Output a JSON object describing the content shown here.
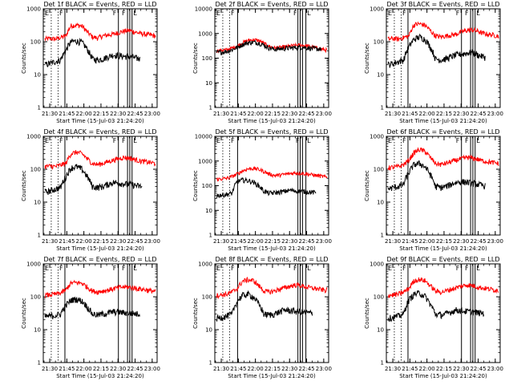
{
  "chart_data": [
    {
      "type": "line",
      "title": "Det 1f BLACK = Events, RED = LLD",
      "xlabel": "Start Time (15-Jul-03 21:24:20)",
      "ylabel": "Counts/sec",
      "yscale": "log",
      "ylim": [
        1,
        1000
      ],
      "xlim_min": [
        0,
        100
      ],
      "xtick_labels": [
        "21:30",
        "21:45",
        "22:00",
        "22:15",
        "22:30",
        "22:45",
        "23:00"
      ],
      "ytick_labels": [
        "1",
        "10",
        "100",
        "1000"
      ],
      "red_profile": [
        120,
        125,
        120,
        135,
        150,
        310,
        320,
        300,
        200,
        140,
        130,
        150,
        160,
        170,
        190,
        210,
        220,
        200,
        180,
        170,
        160,
        150
      ],
      "black_profile": [
        20,
        22,
        25,
        28,
        55,
        100,
        105,
        95,
        60,
        30,
        28,
        30,
        35,
        40,
        38,
        36,
        35,
        33,
        30,
        28,
        26,
        24
      ],
      "black_end_frac": 0.86,
      "markers": [
        {
          "label": "F",
          "min": 13
        },
        {
          "label": "F",
          "min": 60
        },
        {
          "label": "F",
          "min": 68
        },
        {
          "label": "L",
          "min": 78
        }
      ],
      "dashed_lines_min": [
        7,
        13
      ],
      "solid_lines_min": [
        19,
        66,
        74,
        76,
        78
      ],
      "colors": {
        "red": "#ff0000",
        "black": "#000000"
      }
    },
    {
      "type": "line",
      "title": "Det 2f BLACK = Events, RED = LLD",
      "xlabel": "Start Time (15-Jul-03 21:24:20)",
      "ylabel": "Counts/sec",
      "yscale": "log",
      "ylim": [
        1,
        10000
      ],
      "xlim_min": [
        0,
        100
      ],
      "xtick_labels": [
        "21:30",
        "21:45",
        "22:00",
        "22:15",
        "22:30",
        "22:45",
        "23:00"
      ],
      "ytick_labels": [
        "1",
        "10",
        "100",
        "1000",
        "10000"
      ],
      "red_profile": [
        200,
        210,
        220,
        260,
        320,
        420,
        520,
        560,
        520,
        400,
        300,
        260,
        270,
        290,
        310,
        330,
        340,
        320,
        290,
        260,
        230,
        210
      ],
      "black_profile": [
        170,
        175,
        190,
        220,
        280,
        360,
        420,
        440,
        420,
        340,
        260,
        230,
        240,
        250,
        260,
        270,
        280,
        270,
        250,
        240,
        230,
        220
      ],
      "black_end_frac": 0.95,
      "markers": [
        {
          "label": "F",
          "min": 13
        },
        {
          "label": "F",
          "min": 68
        },
        {
          "label": "L",
          "min": 80
        }
      ],
      "dashed_lines_min": [
        7,
        13
      ],
      "solid_lines_min": [
        20,
        73,
        75,
        77,
        80
      ],
      "colors": {
        "red": "#ff0000",
        "black": "#000000"
      }
    },
    {
      "type": "line",
      "title": "Det 3f BLACK = Events, RED = LLD",
      "xlabel": "Start Time (15-Jul-03 21:24:20)",
      "ylabel": "Counts/sec",
      "yscale": "log",
      "ylim": [
        1,
        1000
      ],
      "xlim_min": [
        0,
        100
      ],
      "xtick_labels": [
        "21:30",
        "21:45",
        "22:00",
        "22:15",
        "22:30",
        "22:45",
        "23:00"
      ],
      "ytick_labels": [
        "1",
        "10",
        "100",
        "1000"
      ],
      "red_profile": [
        120,
        125,
        120,
        135,
        150,
        330,
        350,
        320,
        220,
        150,
        140,
        150,
        160,
        170,
        200,
        220,
        230,
        210,
        180,
        170,
        160,
        150
      ],
      "black_profile": [
        20,
        22,
        25,
        28,
        70,
        120,
        140,
        120,
        70,
        30,
        28,
        30,
        35,
        40,
        42,
        45,
        48,
        40,
        35,
        32,
        30,
        28
      ],
      "black_end_frac": 0.88,
      "markers": [
        {
          "label": "F",
          "min": 13
        },
        {
          "label": "F",
          "min": 60
        },
        {
          "label": "F",
          "min": 68
        },
        {
          "label": "L",
          "min": 78
        }
      ],
      "dashed_lines_min": [
        7,
        13
      ],
      "solid_lines_min": [
        19,
        66,
        74,
        76,
        78
      ],
      "colors": {
        "red": "#ff0000",
        "black": "#000000"
      }
    },
    {
      "type": "line",
      "title": "Det 4f BLACK = Events, RED = LLD",
      "xlabel": "Start Time (15-Jul-03 21:24:20)",
      "ylabel": "Counts/sec",
      "yscale": "log",
      "ylim": [
        1,
        1000
      ],
      "xlim_min": [
        0,
        100
      ],
      "xtick_labels": [
        "21:30",
        "21:45",
        "22:00",
        "22:15",
        "22:30",
        "22:45",
        "23:00"
      ],
      "ytick_labels": [
        "1",
        "10",
        "100",
        "1000"
      ],
      "red_profile": [
        120,
        125,
        120,
        135,
        150,
        300,
        330,
        300,
        210,
        150,
        140,
        150,
        170,
        190,
        210,
        230,
        220,
        200,
        180,
        170,
        160,
        150
      ],
      "black_profile": [
        20,
        22,
        25,
        28,
        60,
        110,
        120,
        100,
        60,
        30,
        28,
        30,
        35,
        40,
        38,
        36,
        35,
        33,
        30,
        28,
        26,
        24
      ],
      "black_end_frac": 0.88,
      "markers": [
        {
          "label": "F",
          "min": 13
        },
        {
          "label": "F",
          "min": 60
        },
        {
          "label": "F",
          "min": 68
        },
        {
          "label": "L",
          "min": 78
        }
      ],
      "dashed_lines_min": [
        7,
        13
      ],
      "solid_lines_min": [
        19,
        66,
        74,
        76,
        78
      ],
      "colors": {
        "red": "#ff0000",
        "black": "#000000"
      }
    },
    {
      "type": "line",
      "title": "Det 5f BLACK = Events, RED = LLD",
      "xlabel": "Start Time (15-Jul-03 21:24:20)",
      "ylabel": "Counts/sec",
      "yscale": "log",
      "ylim": [
        1,
        10000
      ],
      "xlim_min": [
        0,
        100
      ],
      "xtick_labels": [
        "21:30",
        "21:45",
        "22:00",
        "22:15",
        "22:30",
        "22:45",
        "23:00"
      ],
      "ytick_labels": [
        "1",
        "10",
        "100",
        "1000",
        "10000"
      ],
      "red_profile": [
        180,
        190,
        200,
        240,
        300,
        400,
        480,
        500,
        460,
        380,
        300,
        260,
        270,
        290,
        310,
        330,
        320,
        300,
        280,
        260,
        240,
        220
      ],
      "black_profile": [
        40,
        42,
        45,
        50,
        150,
        170,
        160,
        140,
        100,
        60,
        50,
        52,
        55,
        60,
        65,
        62,
        60,
        58,
        55,
        52,
        50,
        48
      ],
      "black_end_frac": 0.9,
      "markers": [
        {
          "label": "F",
          "min": 13
        },
        {
          "label": "F",
          "min": 70
        },
        {
          "label": "L",
          "min": 80
        }
      ],
      "dashed_lines_min": [
        7,
        13
      ],
      "solid_lines_min": [
        20,
        73,
        75,
        77,
        80
      ],
      "colors": {
        "red": "#ff0000",
        "black": "#000000"
      }
    },
    {
      "type": "line",
      "title": "Det 6f BLACK = Events, RED = LLD",
      "xlabel": "Start Time (15-Jul-03 21:24:20)",
      "ylabel": "Counts/sec",
      "yscale": "log",
      "ylim": [
        1,
        1000
      ],
      "xlim_min": [
        0,
        100
      ],
      "xtick_labels": [
        "21:30",
        "21:45",
        "22:00",
        "22:15",
        "22:30",
        "22:45",
        "23:00"
      ],
      "ytick_labels": [
        "1",
        "10",
        "100",
        "1000"
      ],
      "red_profile": [
        110,
        115,
        120,
        140,
        190,
        320,
        400,
        350,
        230,
        150,
        140,
        150,
        170,
        190,
        210,
        230,
        220,
        200,
        180,
        170,
        160,
        150
      ],
      "black_profile": [
        25,
        28,
        30,
        35,
        80,
        140,
        150,
        120,
        70,
        30,
        28,
        30,
        35,
        40,
        42,
        40,
        38,
        35,
        32,
        30,
        28,
        27
      ],
      "black_end_frac": 0.88,
      "markers": [
        {
          "label": "F",
          "min": 13
        },
        {
          "label": "F",
          "min": 60
        },
        {
          "label": "F",
          "min": 68
        },
        {
          "label": "L",
          "min": 78
        }
      ],
      "dashed_lines_min": [
        7,
        13
      ],
      "solid_lines_min": [
        19,
        66,
        74,
        76,
        78
      ],
      "colors": {
        "red": "#ff0000",
        "black": "#000000"
      }
    },
    {
      "type": "line",
      "title": "Det 7f BLACK = Events, RED = LLD",
      "xlabel": "Start Time (15-Jul-03 21:24:20)",
      "ylabel": "Counts/sec",
      "yscale": "log",
      "ylim": [
        1,
        1000
      ],
      "xlim_min": [
        0,
        100
      ],
      "xtick_labels": [
        "21:30",
        "21:45",
        "22:00",
        "22:15",
        "22:30",
        "22:45",
        "23:00"
      ],
      "ytick_labels": [
        "1",
        "10",
        "100",
        "1000"
      ],
      "red_profile": [
        110,
        115,
        120,
        130,
        160,
        260,
        270,
        260,
        200,
        150,
        140,
        150,
        160,
        175,
        190,
        200,
        195,
        185,
        175,
        165,
        155,
        145
      ],
      "black_profile": [
        25,
        26,
        27,
        30,
        55,
        80,
        85,
        75,
        50,
        30,
        28,
        30,
        32,
        35,
        34,
        33,
        32,
        31,
        30,
        29,
        28,
        27
      ],
      "black_end_frac": 0.86,
      "markers": [
        {
          "label": "F",
          "min": 13
        },
        {
          "label": "F",
          "min": 60
        },
        {
          "label": "F",
          "min": 68
        },
        {
          "label": "L",
          "min": 78
        }
      ],
      "dashed_lines_min": [
        7,
        13
      ],
      "solid_lines_min": [
        19,
        66,
        74,
        76,
        78
      ],
      "colors": {
        "red": "#ff0000",
        "black": "#000000"
      }
    },
    {
      "type": "line",
      "title": "Det 8f BLACK = Events, RED = LLD",
      "xlabel": "Start Time (15-Jul-03 21:24:20)",
      "ylabel": "Counts/sec",
      "yscale": "log",
      "ylim": [
        1,
        1000
      ],
      "xlim_min": [
        0,
        100
      ],
      "xtick_labels": [
        "21:30",
        "21:45",
        "22:00",
        "22:15",
        "22:30",
        "22:45",
        "23:00"
      ],
      "ytick_labels": [
        "1",
        "10",
        "100",
        "1000"
      ],
      "red_profile": [
        110,
        115,
        120,
        140,
        180,
        300,
        330,
        310,
        220,
        150,
        140,
        150,
        170,
        190,
        210,
        230,
        220,
        200,
        185,
        175,
        165,
        155
      ],
      "black_profile": [
        22,
        24,
        26,
        30,
        75,
        110,
        120,
        100,
        60,
        30,
        28,
        30,
        35,
        40,
        38,
        36,
        35,
        33,
        32,
        30,
        28,
        26
      ],
      "black_end_frac": 0.87,
      "markers": [
        {
          "label": "F",
          "min": 13
        },
        {
          "label": "F",
          "min": 68
        },
        {
          "label": "L",
          "min": 80
        }
      ],
      "dashed_lines_min": [
        7,
        13
      ],
      "solid_lines_min": [
        20,
        73,
        75,
        77,
        80
      ],
      "colors": {
        "red": "#ff0000",
        "black": "#000000"
      }
    },
    {
      "type": "line",
      "title": "Det 9f BLACK = Events, RED = LLD",
      "xlabel": "Start Time (15-Jul-03 21:24:20)",
      "ylabel": "Counts/sec",
      "yscale": "log",
      "ylim": [
        1,
        1000
      ],
      "xlim_min": [
        0,
        100
      ],
      "xtick_labels": [
        "21:30",
        "21:45",
        "22:00",
        "22:15",
        "22:30",
        "22:45",
        "23:00"
      ],
      "ytick_labels": [
        "1",
        "10",
        "100",
        "1000"
      ],
      "red_profile": [
        110,
        115,
        120,
        140,
        180,
        310,
        340,
        310,
        220,
        150,
        140,
        150,
        170,
        190,
        210,
        230,
        220,
        200,
        185,
        175,
        165,
        155
      ],
      "black_profile": [
        22,
        24,
        26,
        30,
        80,
        120,
        130,
        105,
        60,
        30,
        28,
        30,
        35,
        40,
        38,
        36,
        35,
        33,
        32,
        30,
        28,
        26
      ],
      "black_end_frac": 0.87,
      "markers": [
        {
          "label": "F",
          "min": 13
        },
        {
          "label": "F",
          "min": 60
        },
        {
          "label": "F",
          "min": 68
        },
        {
          "label": "L",
          "min": 78
        }
      ],
      "dashed_lines_min": [
        7,
        13
      ],
      "solid_lines_min": [
        19,
        66,
        74,
        76,
        78
      ],
      "colors": {
        "red": "#ff0000",
        "black": "#000000"
      }
    }
  ]
}
